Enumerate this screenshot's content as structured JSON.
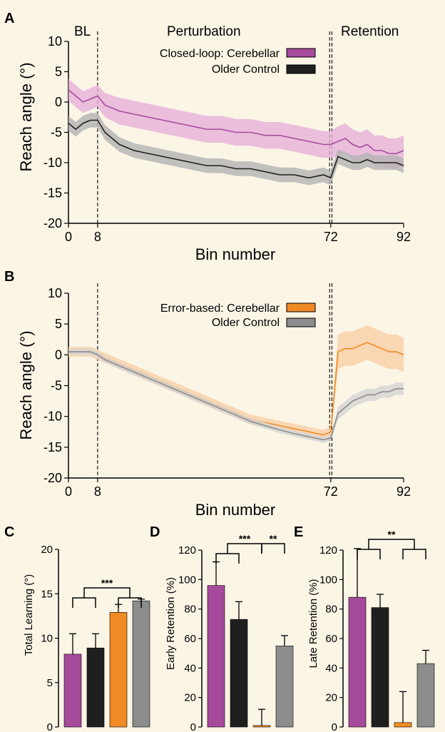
{
  "colors": {
    "magenta": "#a64a9c",
    "magenta_band": "#e7b0da",
    "black": "#1f1f1f",
    "black_band": "#b3b3b3",
    "orange": "#f08a24",
    "orange_band": "#f9cfa6",
    "gray": "#8c8c8c",
    "gray_band": "#d4d4d4"
  },
  "chart_data": [
    {
      "id": "A",
      "panel_letter": "A",
      "type": "line",
      "ylabel": "Reach angle (°)",
      "xlabel": "Bin number",
      "xlim": [
        0,
        92
      ],
      "ylim": [
        -20,
        10
      ],
      "xticks": [
        "0",
        "8",
        "72",
        "92"
      ],
      "yticks": [
        "10",
        "5",
        "0",
        "-5",
        "-10",
        "-15",
        "-20"
      ],
      "phase_labels": [
        "BL",
        "Perturbation",
        "Retention"
      ],
      "phase_boundaries": [
        8,
        72
      ],
      "series": [
        {
          "name": "Closed-loop: Cerebellar",
          "x": [
            0,
            2,
            4,
            6,
            8,
            10,
            14,
            18,
            22,
            26,
            30,
            34,
            38,
            42,
            46,
            50,
            54,
            58,
            62,
            66,
            70,
            72,
            74,
            76,
            78,
            80,
            82,
            84,
            86,
            88,
            90,
            92
          ],
          "y": [
            2,
            1,
            0,
            0.5,
            1,
            -0.5,
            -1.5,
            -2,
            -2.5,
            -3,
            -3.5,
            -4,
            -4.5,
            -4.5,
            -5,
            -5,
            -5.5,
            -5.5,
            -6,
            -6.5,
            -7,
            -7,
            -6.5,
            -6,
            -7,
            -7.5,
            -7,
            -8,
            -8,
            -8.5,
            -8.5,
            -8
          ],
          "error": [
            1.8,
            1.8,
            1.8,
            1.8,
            1.8,
            2,
            2.2,
            2.2,
            2.2,
            2.2,
            2.2,
            2.2,
            2.2,
            2.2,
            2.2,
            2.2,
            2.2,
            2.2,
            2.2,
            2.2,
            2.2,
            2.2,
            2.5,
            2.5,
            2.5,
            2.5,
            2.5,
            2.5,
            2.5,
            2.5,
            2.5,
            2.5
          ]
        },
        {
          "name": "Older Control",
          "x": [
            0,
            2,
            4,
            6,
            8,
            10,
            14,
            18,
            22,
            26,
            30,
            34,
            38,
            42,
            46,
            50,
            54,
            58,
            62,
            66,
            70,
            72,
            74,
            76,
            78,
            80,
            82,
            84,
            86,
            88,
            90,
            92
          ],
          "y": [
            -3.5,
            -4.5,
            -3.5,
            -3,
            -3,
            -5,
            -7,
            -8,
            -8.5,
            -9,
            -9.5,
            -10,
            -10.5,
            -10.5,
            -11,
            -11,
            -11.5,
            -12,
            -12,
            -12.5,
            -12,
            -12.5,
            -9,
            -9.5,
            -10,
            -10,
            -9.5,
            -10,
            -10,
            -10,
            -10,
            -10.5
          ],
          "error": [
            1.2,
            1.2,
            1.2,
            1.2,
            1.2,
            1.2,
            1.2,
            1.2,
            1.2,
            1.2,
            1.2,
            1.2,
            1.2,
            1.2,
            1.2,
            1.2,
            1.2,
            1.2,
            1.2,
            1.2,
            1.2,
            1.2,
            1.2,
            1.2,
            1.2,
            1.2,
            1.2,
            1.2,
            1.2,
            1.2,
            1.2,
            1.2
          ]
        }
      ]
    },
    {
      "id": "B",
      "panel_letter": "B",
      "type": "line",
      "ylabel": "Reach angle (°)",
      "xlabel": "Bin number",
      "xlim": [
        0,
        92
      ],
      "ylim": [
        -20,
        10
      ],
      "xticks": [
        "0",
        "8",
        "72",
        "92"
      ],
      "yticks": [
        "10",
        "5",
        "0",
        "-5",
        "-10",
        "-15",
        "-20"
      ],
      "phase_boundaries": [
        8,
        72
      ],
      "series": [
        {
          "name": "Error-based: Cerebellar",
          "x": [
            0,
            2,
            4,
            6,
            8,
            10,
            14,
            18,
            22,
            26,
            30,
            34,
            38,
            42,
            46,
            50,
            54,
            58,
            62,
            66,
            70,
            72,
            74,
            76,
            78,
            80,
            82,
            84,
            86,
            88,
            90,
            92
          ],
          "y": [
            0.5,
            0.5,
            0.5,
            0.5,
            0,
            -0.5,
            -1.5,
            -2.5,
            -3.5,
            -4.5,
            -5.5,
            -6.5,
            -7.5,
            -8.5,
            -9.5,
            -10.5,
            -11,
            -11.5,
            -12,
            -12.5,
            -13,
            -12.5,
            0.5,
            1,
            1,
            1.5,
            2,
            1.5,
            1,
            0.5,
            0.5,
            0
          ],
          "error": [
            0.8,
            0.8,
            0.8,
            0.8,
            0.8,
            0.8,
            0.8,
            0.8,
            0.8,
            0.8,
            0.8,
            0.8,
            0.8,
            0.8,
            0.8,
            0.8,
            0.8,
            0.8,
            0.8,
            0.8,
            0.8,
            0.8,
            2.8,
            2.8,
            2.8,
            2.8,
            2.8,
            2.8,
            2.8,
            2.8,
            2.8,
            2.8
          ]
        },
        {
          "name": "Older Control",
          "x": [
            0,
            2,
            4,
            6,
            8,
            10,
            14,
            18,
            22,
            26,
            30,
            34,
            38,
            42,
            46,
            50,
            54,
            58,
            62,
            66,
            70,
            72,
            74,
            76,
            78,
            80,
            82,
            84,
            86,
            88,
            90,
            92
          ],
          "y": [
            0.5,
            0.5,
            0.5,
            0.5,
            0,
            -0.8,
            -1.8,
            -2.8,
            -3.8,
            -4.8,
            -5.8,
            -6.8,
            -7.8,
            -8.8,
            -9.8,
            -10.8,
            -11.5,
            -12.2,
            -12.8,
            -13.3,
            -13.8,
            -13.5,
            -9.5,
            -8.5,
            -7.5,
            -7,
            -6.5,
            -6.5,
            -6,
            -6,
            -5.5,
            -5.5
          ],
          "error": [
            0.5,
            0.5,
            0.5,
            0.5,
            0.5,
            0.5,
            0.5,
            0.5,
            0.5,
            0.5,
            0.5,
            0.5,
            0.5,
            0.5,
            0.5,
            0.5,
            0.5,
            0.5,
            0.5,
            0.5,
            0.5,
            0.5,
            1,
            1,
            1,
            1,
            1,
            1,
            1,
            1,
            1,
            1
          ]
        }
      ]
    },
    {
      "id": "C",
      "panel_letter": "C",
      "type": "bar",
      "ylabel": "Total Learning (°)",
      "ylim": [
        0,
        20
      ],
      "yticks": [
        "20",
        "15",
        "10",
        "5",
        "0"
      ],
      "values": [
        8.2,
        8.9,
        12.9,
        14.2
      ],
      "errors": [
        2.3,
        1.6,
        0.9,
        0.2
      ],
      "bar_colors": [
        "#a64a9c",
        "#1f1f1f",
        "#f08a24",
        "#8c8c8c"
      ],
      "significance": [
        {
          "from": [
            0,
            1
          ],
          "to": [
            2,
            3
          ],
          "label": "***"
        }
      ]
    },
    {
      "id": "D",
      "panel_letter": "D",
      "type": "bar",
      "ylabel": "Early Retention (%)",
      "ylim": [
        0,
        120
      ],
      "yticks": [
        "120",
        "100",
        "80",
        "60",
        "40",
        "20",
        "0"
      ],
      "values": [
        96,
        73,
        1,
        55
      ],
      "errors": [
        16,
        12,
        11,
        7
      ],
      "bar_colors": [
        "#a64a9c",
        "#1f1f1f",
        "#f08a24",
        "#8c8c8c"
      ],
      "significance": [
        {
          "from": [
            0,
            1
          ],
          "to": [
            2
          ],
          "label": "***"
        },
        {
          "from": [
            2
          ],
          "to": [
            3
          ],
          "label": "**"
        }
      ]
    },
    {
      "id": "E",
      "panel_letter": "E",
      "type": "bar",
      "ylabel": "Late Retention (%)",
      "ylim": [
        0,
        120
      ],
      "yticks": [
        "120",
        "100",
        "80",
        "60",
        "40",
        "20",
        "0"
      ],
      "values": [
        88,
        81,
        3,
        43
      ],
      "errors": [
        33,
        9,
        21,
        9
      ],
      "bar_colors": [
        "#a64a9c",
        "#1f1f1f",
        "#f08a24",
        "#8c8c8c"
      ],
      "significance": [
        {
          "from": [
            0,
            1
          ],
          "to": [
            2,
            3
          ],
          "label": "**"
        }
      ]
    }
  ]
}
